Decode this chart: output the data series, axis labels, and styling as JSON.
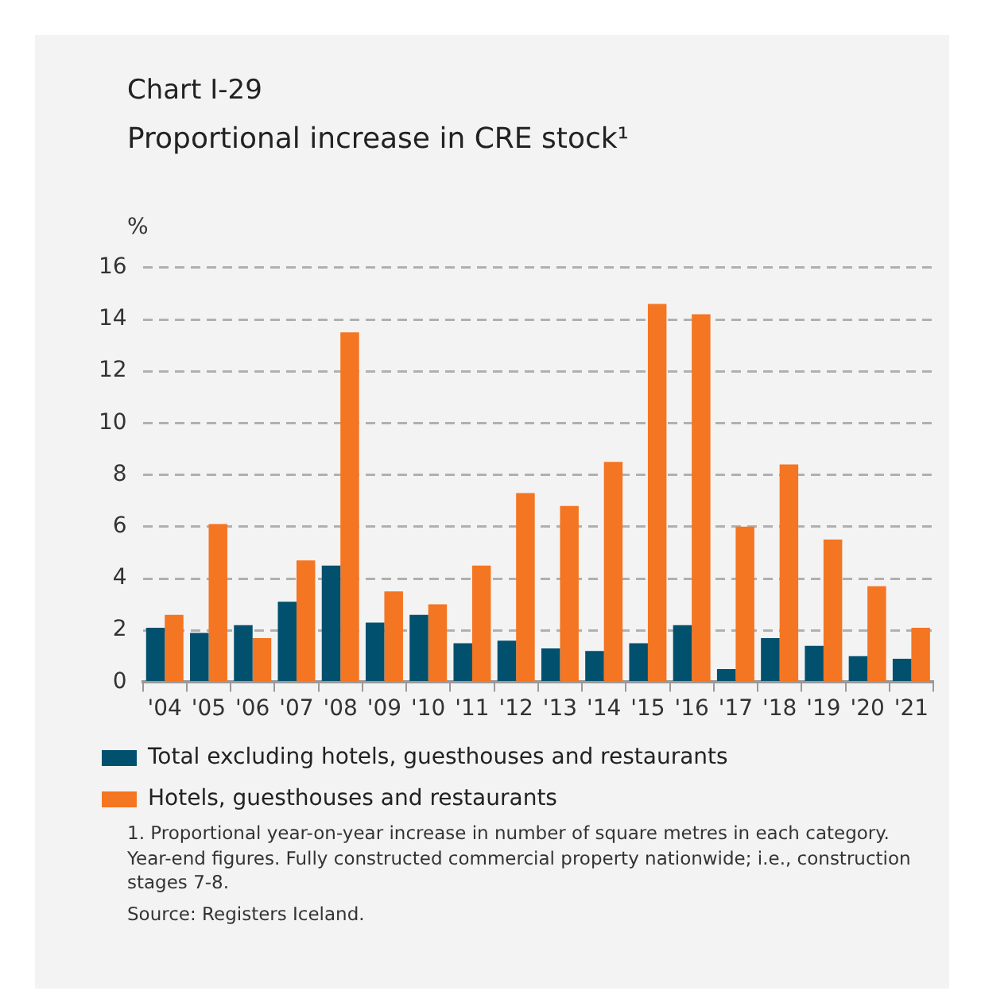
{
  "chart_data": {
    "type": "bar",
    "title": "Chart I-29",
    "subtitle": "Proportional increase in CRE stock¹",
    "ylabel": "%",
    "categories": [
      "'04",
      "'05",
      "'06",
      "'07",
      "'08",
      "'09",
      "'10",
      "'11",
      "'12",
      "'13",
      "'14",
      "'15",
      "'16",
      "'17",
      "'18",
      "'19",
      "'20",
      "'21"
    ],
    "series": [
      {
        "name": "Total excluding hotels, guesthouses and restaurants",
        "color": "#00506e",
        "values": [
          2.1,
          1.9,
          2.2,
          3.1,
          4.5,
          2.3,
          2.6,
          1.5,
          1.6,
          1.3,
          1.2,
          1.5,
          2.2,
          0.5,
          1.7,
          1.4,
          1.0,
          0.9
        ]
      },
      {
        "name": "Hotels, guesthouses and restaurants",
        "color": "#f47522",
        "values": [
          2.6,
          6.1,
          1.7,
          4.7,
          13.5,
          3.5,
          3.0,
          4.5,
          7.3,
          6.8,
          8.5,
          14.6,
          14.2,
          6.0,
          8.4,
          5.5,
          3.7,
          2.1
        ]
      }
    ],
    "ylim": [
      0,
      16
    ],
    "yticks": [
      0,
      2,
      4,
      6,
      8,
      10,
      12,
      14,
      16
    ],
    "grid": "y",
    "legend": "bottom",
    "annotations": [
      "1. Proportional year-on-year increase in number of square metres in each category. Year-end figures. Fully constructed commercial property nationwide; i.e., construction stages 7-8.",
      "Source: Registers Iceland."
    ]
  }
}
